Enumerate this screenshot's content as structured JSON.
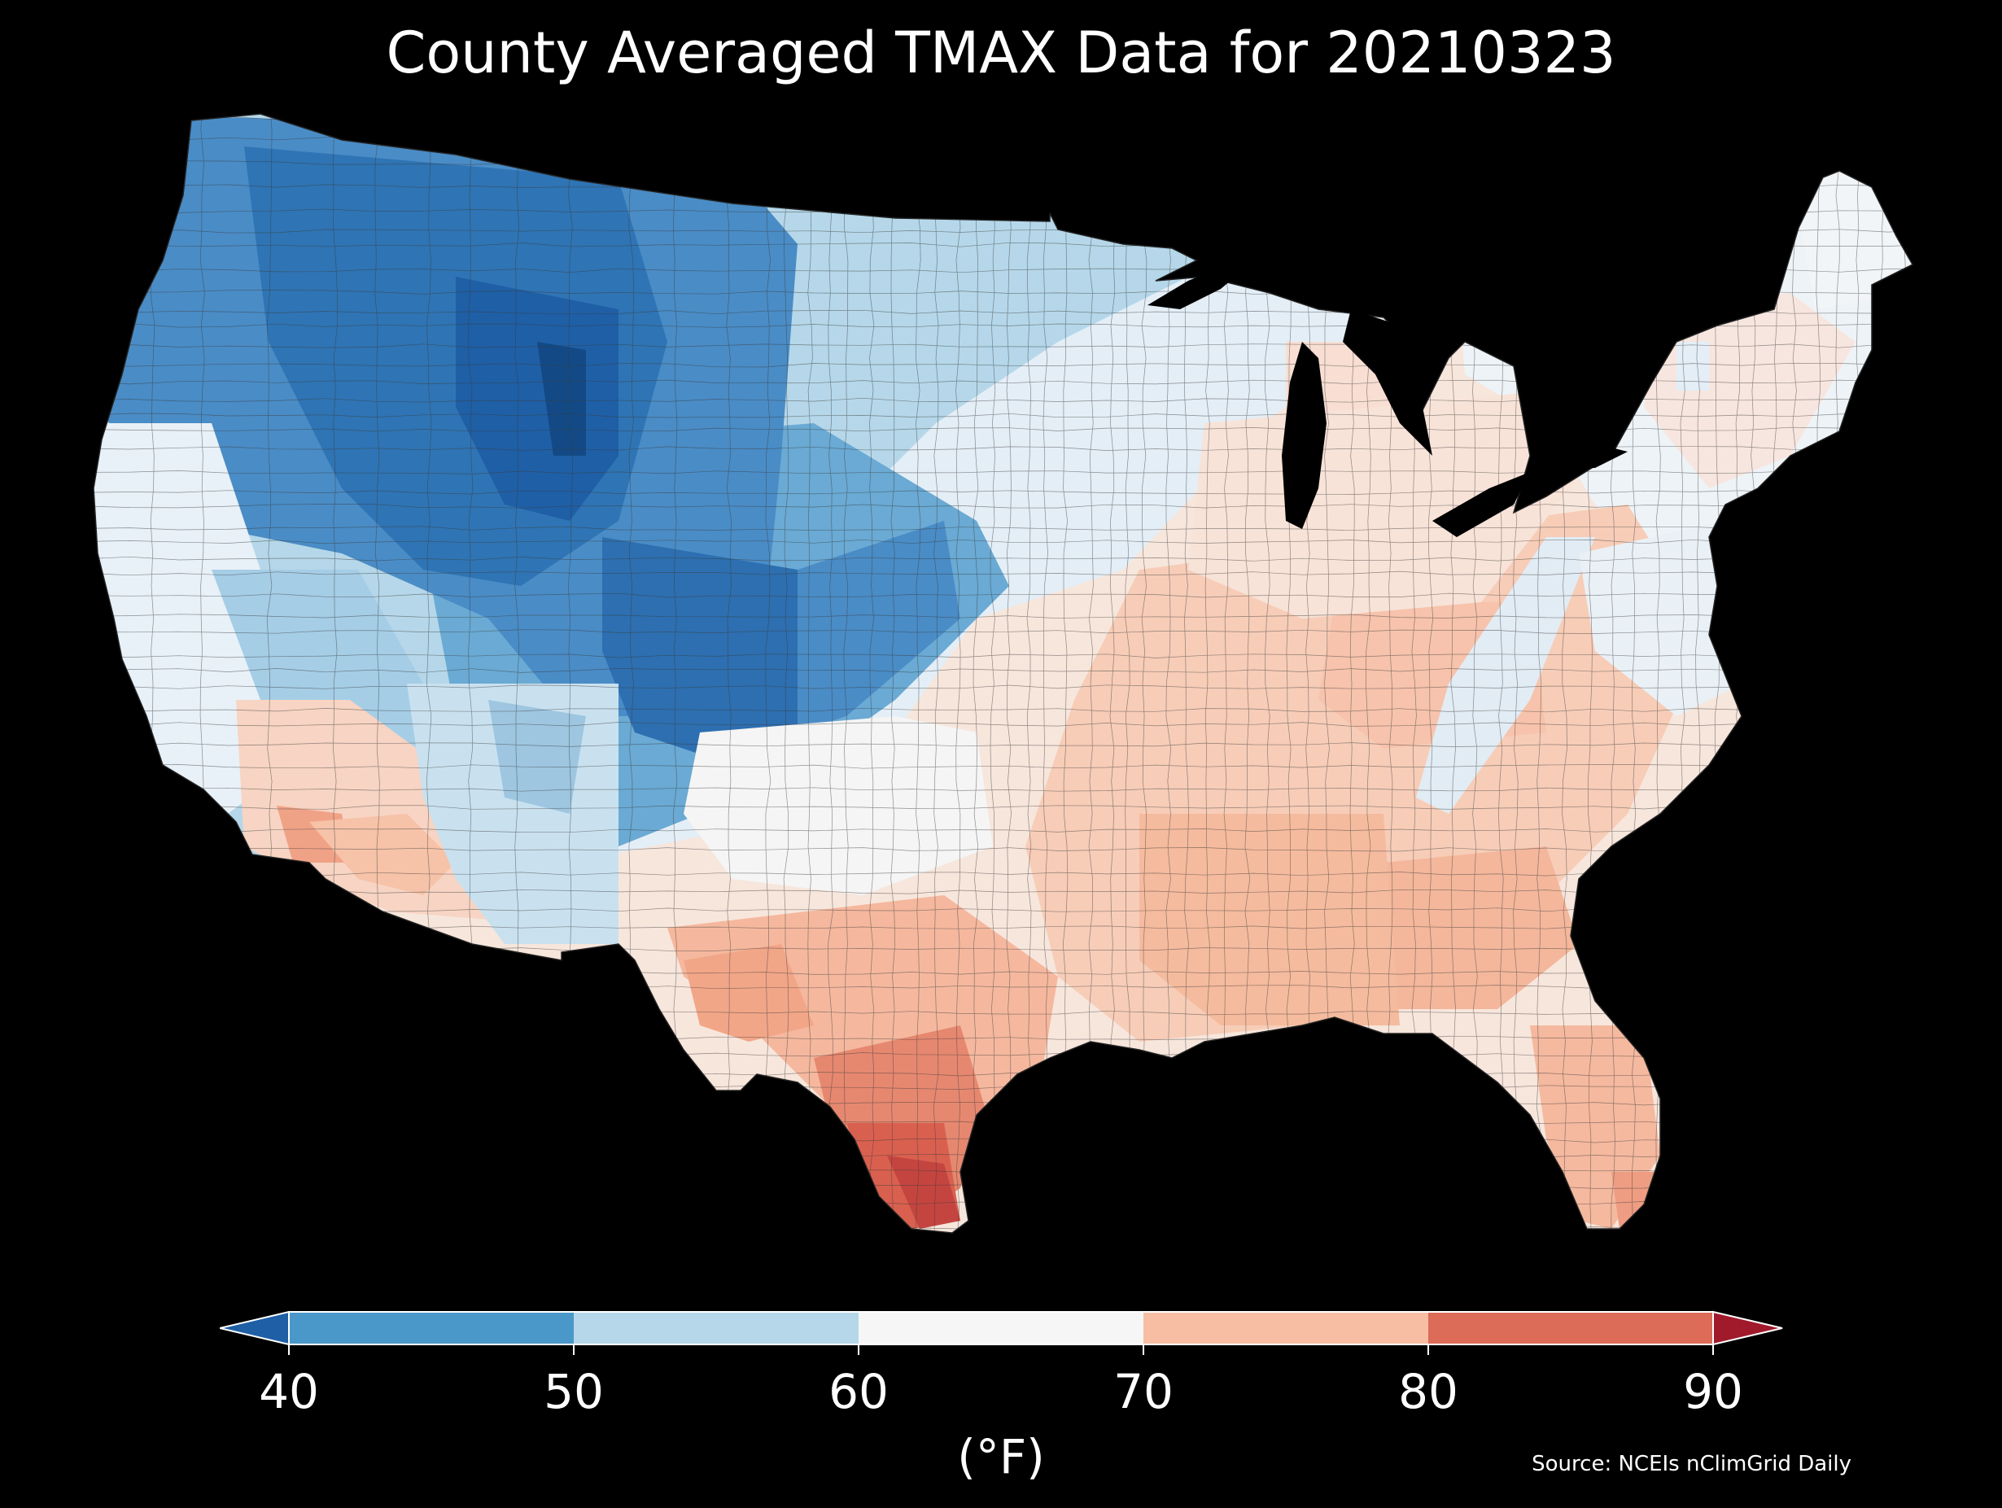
{
  "title": "County Averaged TMAX Data for 20210323",
  "colorbar": {
    "unit": "(°F)",
    "ticks": [
      "40",
      "50",
      "60",
      "70",
      "80",
      "90"
    ],
    "bins": [
      {
        "range": "<40",
        "color": "#1f5fa6"
      },
      {
        "range": "40-50",
        "color": "#4a98c9"
      },
      {
        "range": "50-60",
        "color": "#b5d7e9"
      },
      {
        "range": "60-70",
        "color": "#f6f6f6"
      },
      {
        "range": "70-80",
        "color": "#f7bea3"
      },
      {
        "range": "80-90",
        "color": "#dc6b58"
      },
      {
        "range": ">90",
        "color": "#a01a2b"
      }
    ]
  },
  "source": "Source: NCEIs nClimGrid Daily",
  "map": {
    "region": "Contiguous United States counties",
    "regions_colors": {
      "northwest_rockies": "#2f74b4",
      "northern_rockies_core": "#1b4f8f",
      "great_plains_north": "#b5d7e9",
      "central_plains": "#6aaad4",
      "midwest": "#e4eef6",
      "northeast": "#eef3f7",
      "great_lakes_east": "#f8e0d6",
      "southeast": "#f7c5ad",
      "gulf_coast": "#f0a98c",
      "south_texas": "#d9604f",
      "desert_southwest": "#f6cdb8",
      "west_coast": "#e8f1f8",
      "florida": "#f7c6ad"
    }
  }
}
